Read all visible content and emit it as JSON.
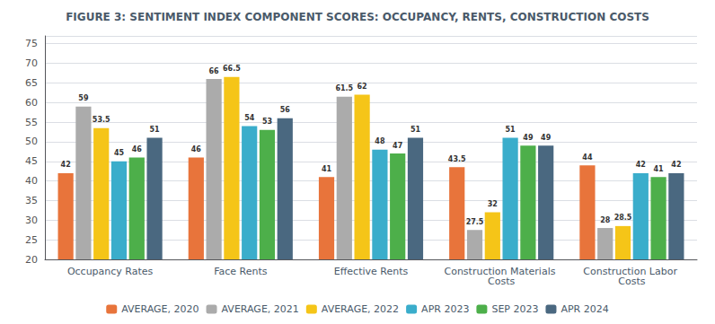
{
  "chart_data": {
    "type": "bar",
    "title": "FIGURE 3: SENTIMENT INDEX COMPONENT SCORES: OCCUPANCY, RENTS, CONSTRUCTION COSTS",
    "categories": [
      "Occupancy Rates",
      "Face Rents",
      "Effective Rents",
      "Construction Materials Costs",
      "Construction Labor Costs"
    ],
    "series": [
      {
        "name": "AVERAGE, 2020",
        "color": "#E8743B",
        "values": [
          42,
          46,
          41,
          43.5,
          44
        ]
      },
      {
        "name": "AVERAGE, 2021",
        "color": "#ABABAB",
        "values": [
          59,
          66,
          61.5,
          27.5,
          28
        ]
      },
      {
        "name": "AVERAGE, 2022",
        "color": "#F5C518",
        "values": [
          53.5,
          66.5,
          62,
          32,
          28.5
        ]
      },
      {
        "name": "APR 2023",
        "color": "#3AADCB",
        "values": [
          45,
          54,
          48,
          51,
          42
        ]
      },
      {
        "name": "SEP 2023",
        "color": "#4DAF4A",
        "values": [
          46,
          53,
          47,
          49,
          41
        ]
      },
      {
        "name": "APR 2024",
        "color": "#4A6880",
        "values": [
          51,
          56,
          51,
          49,
          42
        ]
      }
    ],
    "ylim": [
      20,
      77
    ],
    "yticks": [
      20,
      25,
      30,
      35,
      40,
      45,
      50,
      55,
      60,
      65,
      70,
      75
    ],
    "grid": true,
    "legend": "bottom",
    "data_labels": true
  }
}
